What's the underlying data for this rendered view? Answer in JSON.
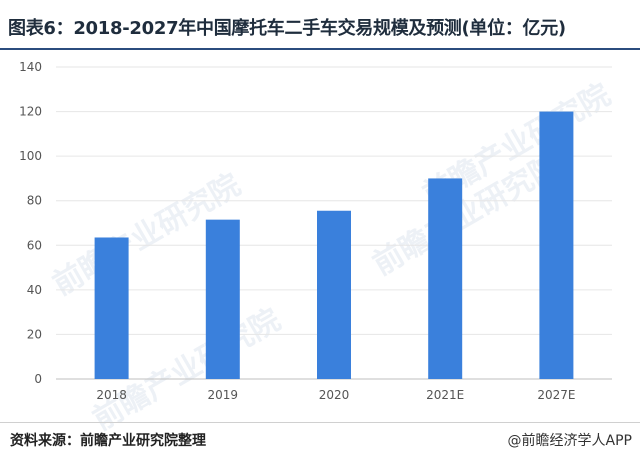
{
  "title": "图表6：2018-2027年中国摩托车二手车交易规模及预测(单位：亿元)",
  "source": "资料来源：前瞻产业研究院整理",
  "brand": "@前瞻经济学人APP",
  "watermark": "前瞻产业研究院",
  "colors": {
    "bar": "#3a80dc",
    "title_rule": "#2b4c7e",
    "grid": "#e6e6e6"
  },
  "chart_data": {
    "type": "bar",
    "categories": [
      "2018",
      "2019",
      "2020",
      "2021E",
      "2027E"
    ],
    "values": [
      63.5,
      71.5,
      75.5,
      90,
      120
    ],
    "ylim": [
      0,
      140
    ],
    "yticks": [
      0,
      20,
      40,
      60,
      80,
      100,
      120,
      140
    ],
    "grid": true,
    "xlabel": "",
    "ylabel": ""
  }
}
